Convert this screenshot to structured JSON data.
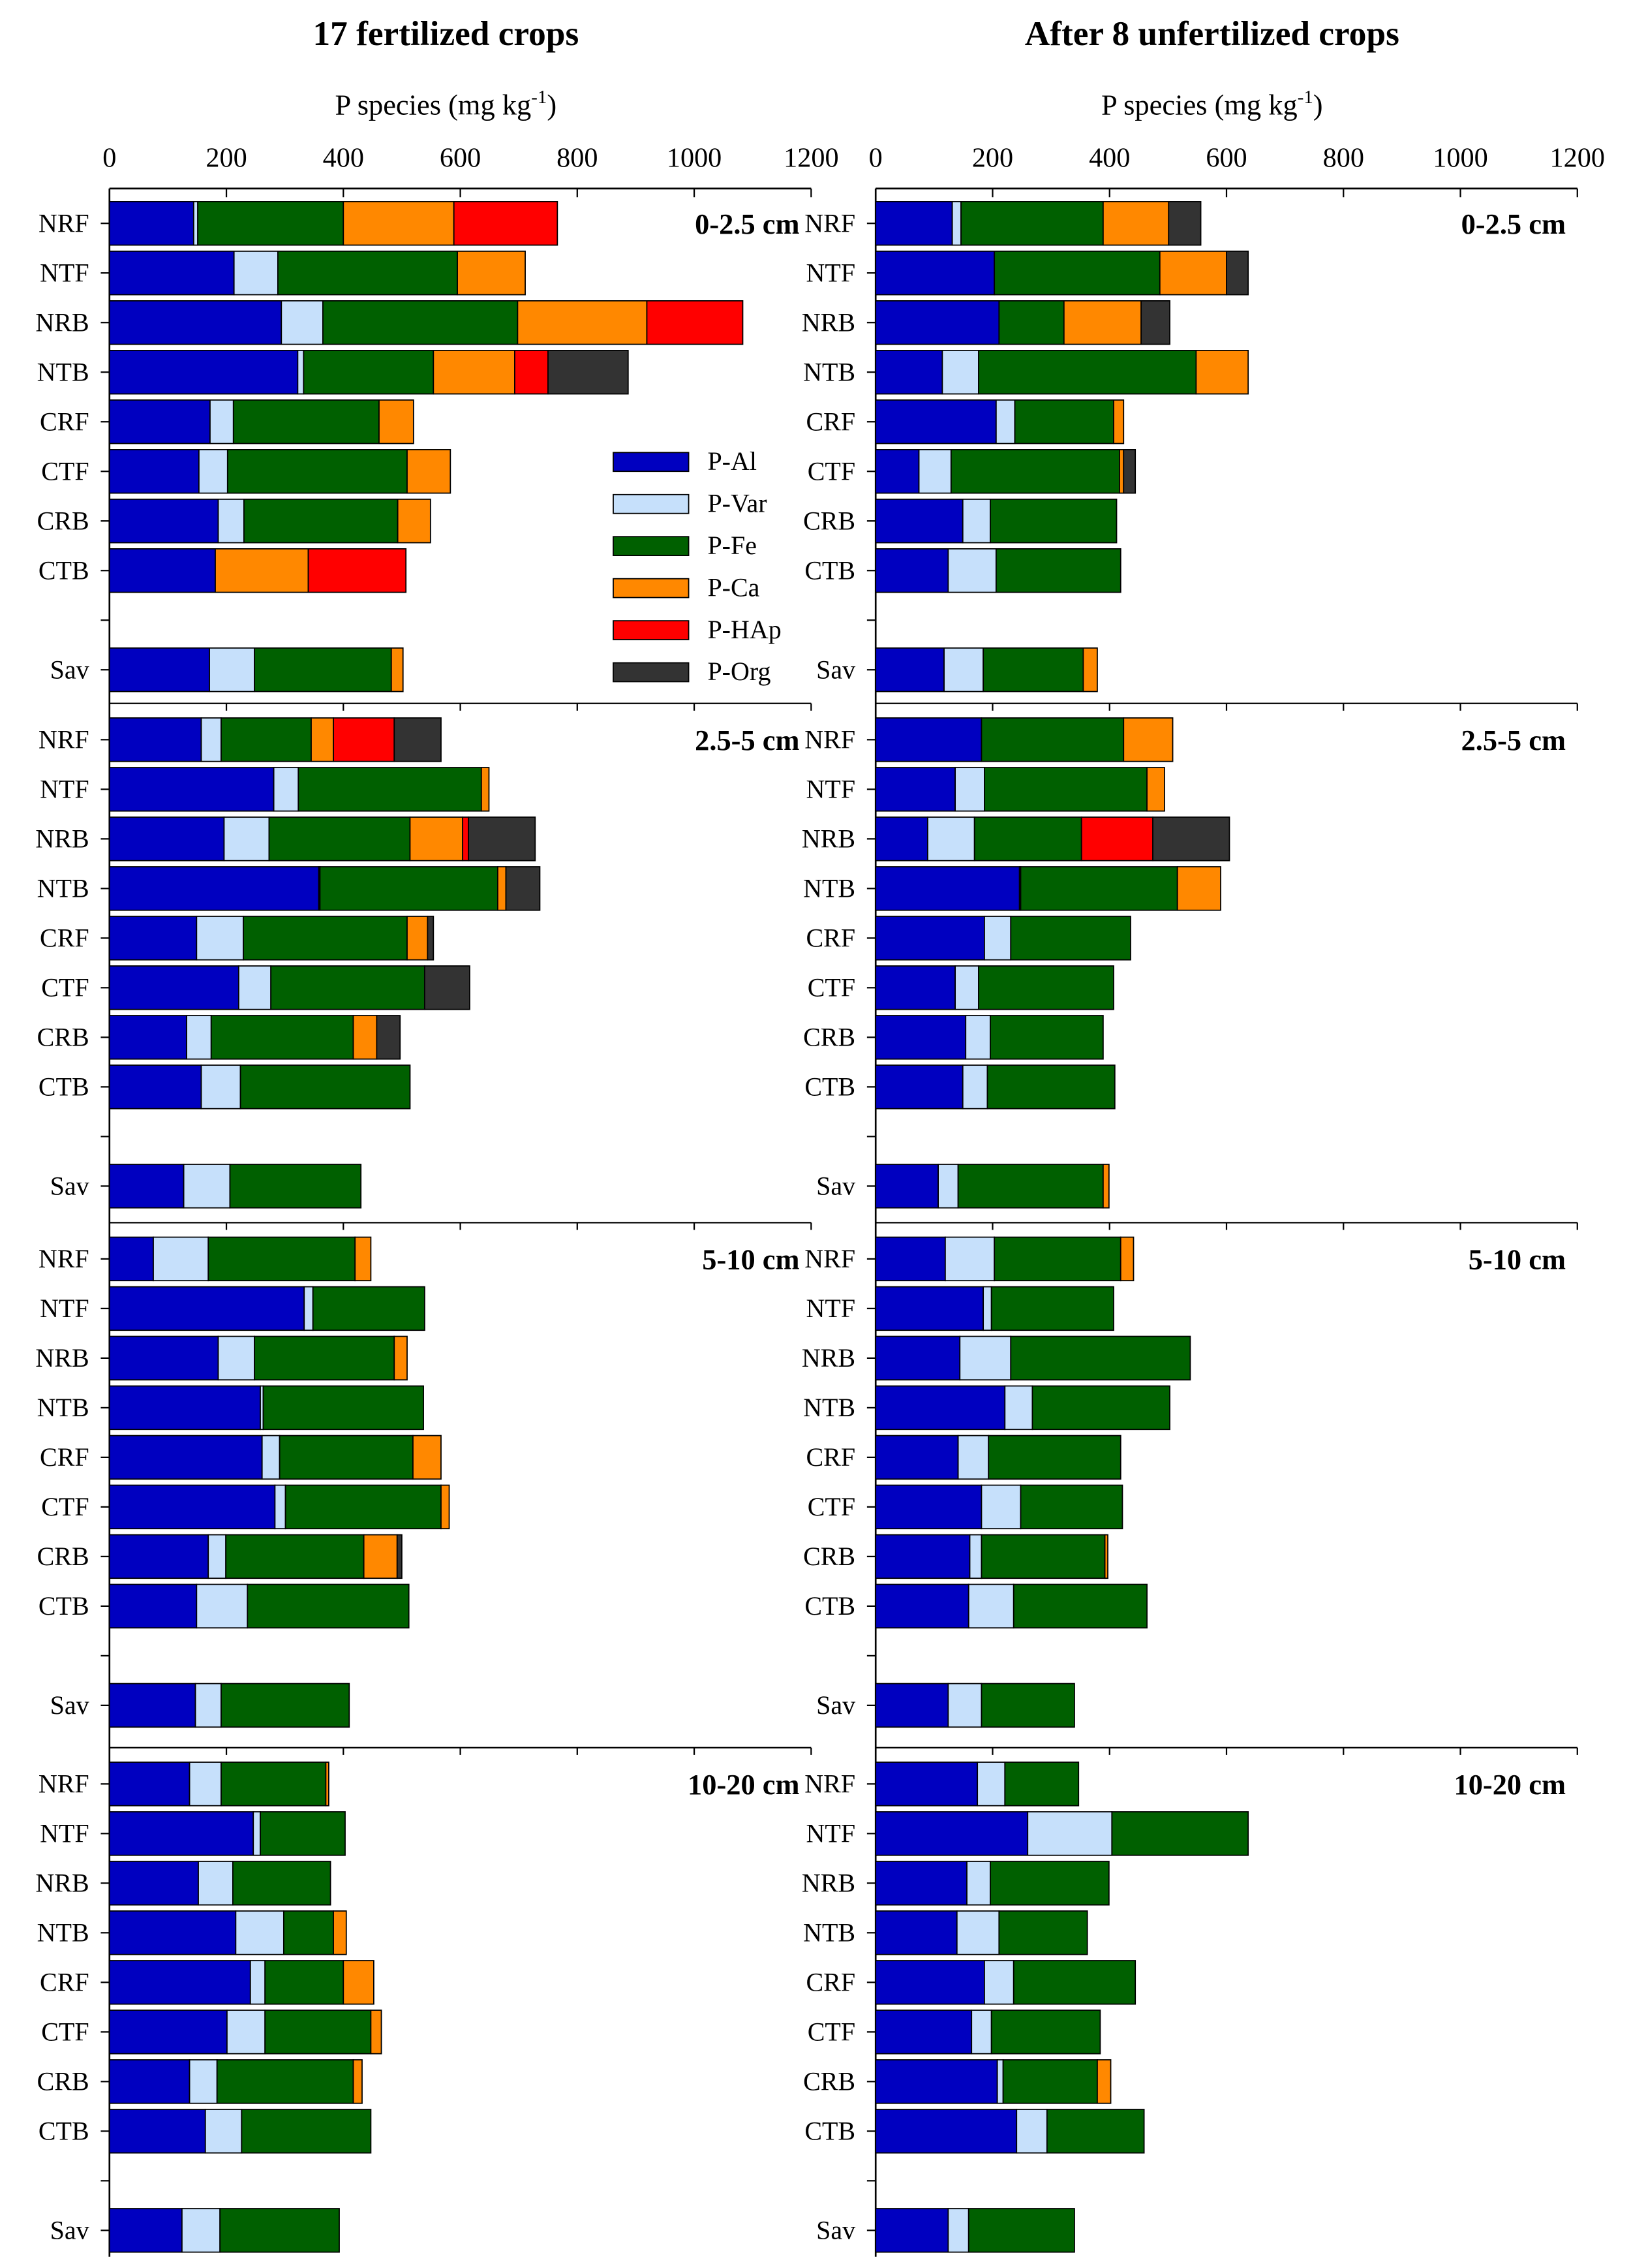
{
  "chart_data": {
    "type": "bar",
    "orientation": "horizontal",
    "stacked": true,
    "xlabel": "P species (mg kg",
    "xlabel_sup": "-1",
    "xlabel_end": ")",
    "xlim": [
      0,
      1200
    ],
    "xticks": [
      0,
      200,
      400,
      600,
      800,
      1000,
      1200
    ],
    "legend_position": "inside",
    "series": [
      {
        "name": "P-Al",
        "color": "#0000c0"
      },
      {
        "name": "P-Var",
        "color": "#c6e0fb"
      },
      {
        "name": "P-Fe",
        "color": "#006000"
      },
      {
        "name": "P-Ca",
        "color": "#ff8800"
      },
      {
        "name": "P-HAp",
        "color": "#ff0000"
      },
      {
        "name": "P-Org",
        "color": "#333333"
      }
    ],
    "categories": [
      "NRF",
      "NTF",
      "NRB",
      "NTB",
      "CRF",
      "CTF",
      "CRB",
      "CTB",
      "",
      "Sav"
    ],
    "panels": [
      {
        "title": "17 fertilized crops",
        "depths": [
          {
            "label": "0-2.5 cm",
            "values": [
              [
                144,
                7,
                249,
                189,
                177,
                0
              ],
              [
                213,
                75,
                307,
                116,
                0,
                0
              ],
              [
                294,
                71,
                333,
                221,
                164,
                0
              ],
              [
                322,
                10,
                222,
                139,
                57,
                137
              ],
              [
                172,
                40,
                249,
                59,
                0,
                0
              ],
              [
                153,
                49,
                307,
                74,
                0,
                0
              ],
              [
                186,
                44,
                263,
                56,
                0,
                0
              ],
              [
                181,
                0,
                0,
                159,
                167,
                0
              ],
              null,
              [
                171,
                77,
                234,
                20,
                0,
                0
              ]
            ]
          },
          {
            "label": "2.5-5 cm",
            "values": [
              [
                157,
                34,
                154,
                38,
                104,
                80
              ],
              [
                281,
                42,
                313,
                13,
                0,
                0
              ],
              [
                196,
                77,
                241,
                90,
                10,
                114
              ],
              [
                358,
                2,
                304,
                14,
                0,
                58
              ],
              [
                149,
                80,
                280,
                35,
                0,
                10
              ],
              [
                221,
                55,
                263,
                0,
                0,
                77
              ],
              [
                132,
                42,
                243,
                40,
                0,
                40
              ],
              [
                157,
                67,
                290,
                0,
                0,
                0
              ],
              null,
              [
                127,
                79,
                224,
                0,
                0,
                0
              ]
            ]
          },
          {
            "label": "5-10 cm",
            "values": [
              [
                75,
                94,
                251,
                27,
                0,
                0
              ],
              [
                333,
                15,
                191,
                0,
                0,
                0
              ],
              [
                186,
                62,
                239,
                22,
                0,
                0
              ],
              [
                258,
                5,
                274,
                0,
                0,
                0
              ],
              [
                261,
                30,
                228,
                48,
                0,
                0
              ],
              [
                283,
                18,
                266,
                14,
                0,
                0
              ],
              [
                169,
                30,
                236,
                57,
                0,
                8
              ],
              [
                149,
                87,
                276,
                0,
                0,
                0
              ],
              null,
              [
                147,
                44,
                219,
                0,
                0,
                0
              ]
            ]
          },
          {
            "label": "10-20 cm",
            "values": [
              [
                137,
                54,
                179,
                5,
                0,
                0
              ],
              [
                246,
                12,
                145,
                0,
                0,
                0
              ],
              [
                152,
                59,
                167,
                0,
                0,
                0
              ],
              [
                216,
                82,
                85,
                22,
                0,
                0
              ],
              [
                241,
                25,
                134,
                52,
                0,
                0
              ],
              [
                201,
                65,
                181,
                18,
                0,
                0
              ],
              [
                137,
                47,
                233,
                15,
                0,
                0
              ],
              [
                164,
                62,
                221,
                0,
                0,
                0
              ],
              null,
              [
                124,
                65,
                204,
                0,
                0,
                0
              ]
            ]
          }
        ]
      },
      {
        "title": "After 8 unfertilized crops",
        "depths": [
          {
            "label": "0-2.5 cm",
            "values": [
              [
                131,
                15,
                243,
                112,
                0,
                55
              ],
              [
                203,
                0,
                283,
                114,
                0,
                37
              ],
              [
                211,
                0,
                111,
                132,
                0,
                49
              ],
              [
                114,
                62,
                372,
                89,
                0,
                0
              ],
              [
                206,
                32,
                169,
                17,
                0,
                0
              ],
              [
                74,
                55,
                288,
                7,
                0,
                20
              ],
              [
                149,
                47,
                216,
                0,
                0,
                0
              ],
              [
                124,
                82,
                213,
                0,
                0,
                0
              ],
              null,
              [
                117,
                67,
                171,
                24,
                0,
                0
              ]
            ]
          },
          {
            "label": "2.5-5 cm",
            "values": [
              [
                181,
                0,
                243,
                84,
                0,
                0
              ],
              [
                136,
                50,
                278,
                30,
                0,
                0
              ],
              [
                89,
                80,
                183,
                0,
                122,
                131
              ],
              [
                246,
                2,
                268,
                74,
                0,
                0
              ],
              [
                186,
                45,
                205,
                0,
                0,
                0
              ],
              [
                136,
                40,
                231,
                0,
                0,
                0
              ],
              [
                154,
                42,
                193,
                0,
                0,
                0
              ],
              [
                149,
                42,
                218,
                0,
                0,
                0
              ],
              null,
              [
                107,
                34,
                248,
                10,
                0,
                0
              ]
            ]
          },
          {
            "label": "5-10 cm",
            "values": [
              [
                119,
                84,
                216,
                22,
                0,
                0
              ],
              [
                184,
                14,
                209,
                0,
                0,
                0
              ],
              [
                144,
                87,
                307,
                0,
                0,
                0
              ],
              [
                221,
                47,
                235,
                0,
                0,
                0
              ],
              [
                141,
                52,
                226,
                0,
                0,
                0
              ],
              [
                181,
                67,
                174,
                0,
                0,
                0
              ],
              [
                161,
                20,
                211,
                5,
                0,
                0
              ],
              [
                159,
                77,
                228,
                0,
                0,
                0
              ],
              null,
              [
                124,
                57,
                159,
                0,
                0,
                0
              ]
            ]
          },
          {
            "label": "10-20 cm",
            "values": [
              [
                174,
                47,
                126,
                0,
                0,
                0
              ],
              [
                260,
                144,
                233,
                0,
                0,
                0
              ],
              [
                156,
                40,
                203,
                0,
                0,
                0
              ],
              [
                139,
                72,
                151,
                0,
                0,
                0
              ],
              [
                186,
                50,
                208,
                0,
                0,
                0
              ],
              [
                164,
                34,
                186,
                0,
                0,
                0
              ],
              [
                208,
                10,
                161,
                23,
                0,
                0
              ],
              [
                241,
                52,
                166,
                0,
                0,
                0
              ],
              null,
              [
                124,
                35,
                181,
                0,
                0,
                0
              ]
            ]
          }
        ]
      }
    ]
  }
}
